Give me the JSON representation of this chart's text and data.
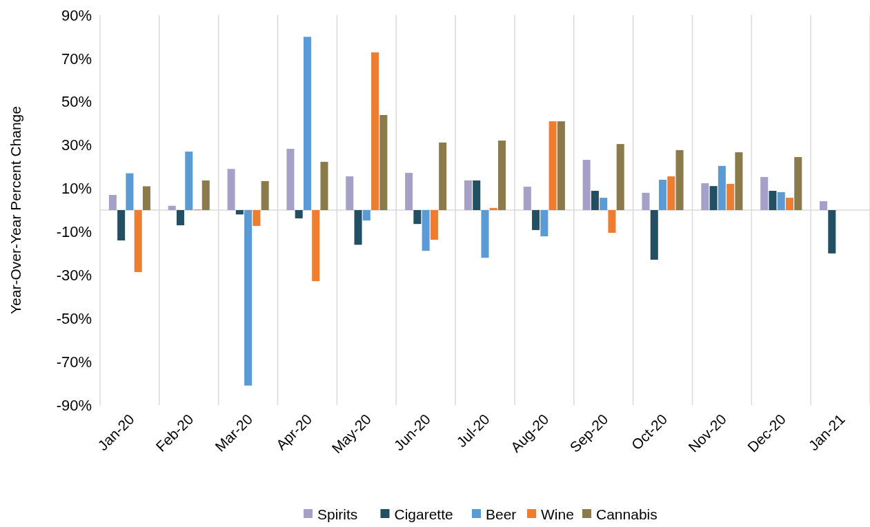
{
  "chart_data": {
    "type": "bar",
    "ylabel": "Year-Over-Year Percent Change",
    "categories": [
      "Jan-20",
      "Feb-20",
      "Mar-20",
      "Apr-20",
      "May-20",
      "Jun-20",
      "Jul-20",
      "Aug-20",
      "Sep-20",
      "Oct-20",
      "Nov-20",
      "Dec-20",
      "Jan-21"
    ],
    "series": [
      {
        "name": "Spirits",
        "color": "#a5a0c8",
        "values": [
          7,
          2,
          19,
          28.3,
          15.6,
          17.2,
          13.7,
          10.8,
          23.2,
          8,
          12.4,
          15.3,
          4.1
        ]
      },
      {
        "name": "Cigarette",
        "color": "#234f63",
        "values": [
          -14,
          -7,
          -2,
          -3.8,
          -16,
          -6.4,
          13.7,
          -9.2,
          8.9,
          -22.9,
          11.1,
          8.9,
          -20
        ]
      },
      {
        "name": "Beer",
        "color": "#5b9bd5",
        "values": [
          17,
          27,
          -81,
          80,
          -4.8,
          -18.8,
          -22,
          -12.1,
          5.7,
          14,
          20.4,
          8.3,
          null
        ]
      },
      {
        "name": "Wine",
        "color": "#ed7d31",
        "values": [
          -28.6,
          0.3,
          -7.3,
          -32.8,
          72.8,
          -13.7,
          1,
          41,
          -10.5,
          15.6,
          12.1,
          5.7,
          null
        ]
      },
      {
        "name": "Cannabis",
        "color": "#8b7b4a",
        "values": [
          11,
          13.7,
          13.4,
          22.3,
          43.9,
          31.2,
          32.1,
          41,
          30.5,
          27.7,
          26.7,
          24.5,
          null
        ]
      }
    ],
    "ylim": [
      -90,
      90
    ],
    "yticks": [
      {
        "value": -90,
        "label": "-90%"
      },
      {
        "value": -70,
        "label": "-70%"
      },
      {
        "value": -50,
        "label": "-50%"
      },
      {
        "value": -30,
        "label": "-30%"
      },
      {
        "value": -10,
        "label": "-10%"
      },
      {
        "value": 10,
        "label": "10%"
      },
      {
        "value": 30,
        "label": "30%"
      },
      {
        "value": 50,
        "label": "50%"
      },
      {
        "value": 70,
        "label": "70%"
      },
      {
        "value": 90,
        "label": "90%"
      }
    ],
    "grid": "x",
    "legend": "bottom"
  }
}
